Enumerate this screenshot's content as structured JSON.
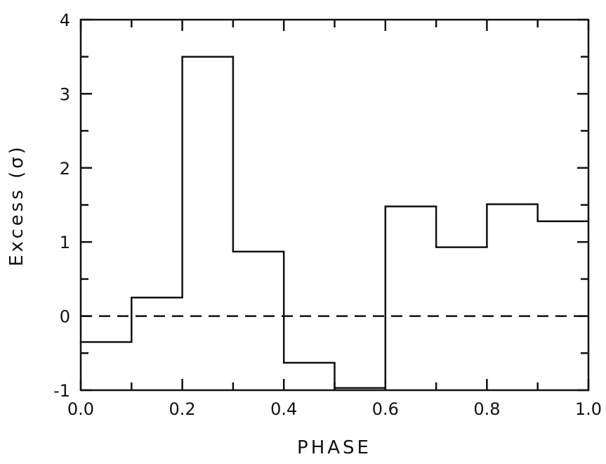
{
  "chart_data": {
    "type": "histogram-step",
    "title": "",
    "xlabel": "PHASE",
    "ylabel": "Excess (σ)",
    "xlim": [
      0.0,
      1.0
    ],
    "ylim": [
      -1,
      4
    ],
    "x_tick_labels": [
      "0.0",
      "0.2",
      "0.4",
      "0.6",
      "0.8",
      "1.0"
    ],
    "x_tick_values": [
      0.0,
      0.2,
      0.4,
      0.6,
      0.8,
      1.0
    ],
    "y_tick_labels": [
      "-1",
      "0",
      "1",
      "2",
      "3",
      "4"
    ],
    "y_tick_values": [
      -1,
      0,
      1,
      2,
      3,
      4
    ],
    "bin_edges": [
      0.0,
      0.1,
      0.2,
      0.3,
      0.4,
      0.5,
      0.6,
      0.7,
      0.8,
      0.9,
      1.0
    ],
    "values": [
      -0.35,
      0.25,
      3.5,
      0.87,
      -0.63,
      -0.97,
      1.48,
      0.93,
      1.51,
      1.28
    ],
    "reference_line": {
      "y": 0,
      "style": "dashed"
    },
    "grid": false,
    "legend": "none"
  }
}
